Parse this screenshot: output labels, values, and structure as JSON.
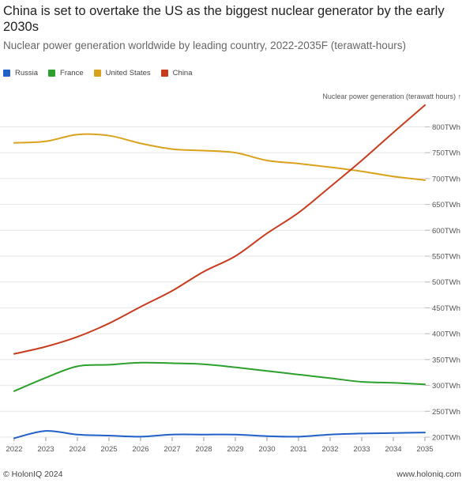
{
  "chart_data": {
    "type": "line",
    "title": "China is set to overtake the US as the biggest nuclear generator by the early 2030s",
    "subtitle": "Nuclear power generation worldwide by leading country, 2022-2035F (terawatt-hours)",
    "ylabel": "Nuclear power generation (terawatt hours) ↑",
    "xlabel": "",
    "x": [
      2022,
      2023,
      2024,
      2025,
      2026,
      2027,
      2028,
      2029,
      2030,
      2031,
      2032,
      2033,
      2034,
      2035
    ],
    "ylim": [
      200,
      845
    ],
    "yticks": [
      200,
      250,
      300,
      350,
      400,
      450,
      500,
      550,
      600,
      650,
      700,
      750,
      800
    ],
    "ytick_labels": [
      "200TWh",
      "250TWh",
      "300TWh",
      "350TWh",
      "400TWh",
      "450TWh",
      "500TWh",
      "550TWh",
      "600TWh",
      "650TWh",
      "700TWh",
      "750TWh",
      "800TWh"
    ],
    "xtick_labels": [
      "2022",
      "2023",
      "2024",
      "2025",
      "2026",
      "2027",
      "2028",
      "2029",
      "2030",
      "2031",
      "2032",
      "2033",
      "2034",
      "2035"
    ],
    "grid": true,
    "legend_position": "top-left",
    "series": [
      {
        "name": "Russia",
        "color": "#2060c8",
        "values": [
          198,
          212,
          205,
          203,
          201,
          205,
          205,
          205,
          202,
          201,
          205,
          207,
          208,
          209
        ]
      },
      {
        "name": "France",
        "color": "#2ca02c",
        "values": [
          289,
          315,
          337,
          340,
          344,
          343,
          341,
          335,
          328,
          321,
          314,
          307,
          305,
          302
        ]
      },
      {
        "name": "United States",
        "color": "#d9a21b",
        "values": [
          769,
          772,
          785,
          783,
          768,
          757,
          754,
          750,
          735,
          729,
          722,
          714,
          704,
          697
        ]
      },
      {
        "name": "China",
        "color": "#c83c1e",
        "values": [
          361,
          375,
          394,
          420,
          452,
          483,
          520,
          550,
          594,
          634,
          684,
          735,
          789,
          842
        ]
      }
    ]
  },
  "footer": {
    "copyright": "© HolonIQ 2024",
    "website": "www.holoniq.com"
  }
}
